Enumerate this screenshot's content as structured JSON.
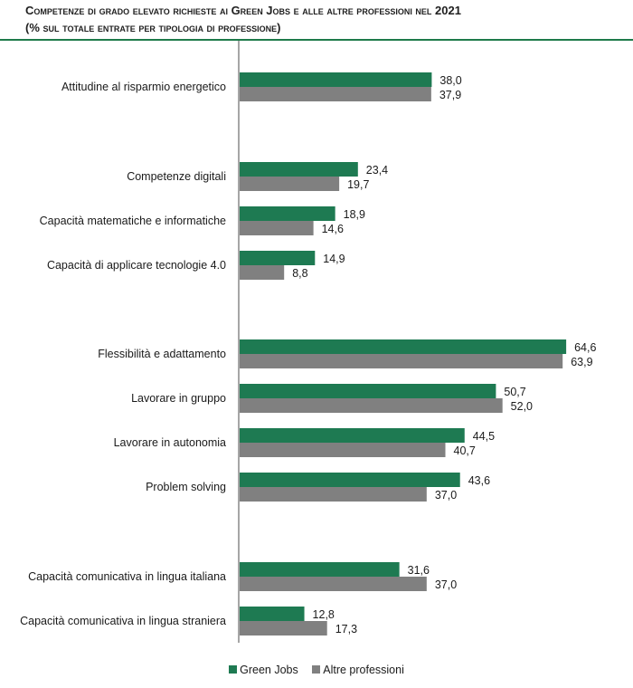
{
  "chart_data": {
    "type": "bar",
    "orientation": "horizontal",
    "title": "Competenze di grado elevato   richieste ai Green Jobs e alle altre professioni nel 2021",
    "subtitle": "(% sul totale entrate per tipologia di professione)",
    "xlabel": "",
    "ylabel": "",
    "xlim": [
      0,
      70
    ],
    "grid": false,
    "legend_position": "bottom",
    "categories": [
      "Attitudine al risparmio energetico",
      "Competenze digitali",
      "Capacità matematiche e informatiche",
      "Capacità di applicare tecnologie 4.0",
      "Flessibilità e adattamento",
      "Lavorare in gruppo",
      "Lavorare in autonomia",
      "Problem solving",
      "Capacità comunicativa in lingua italiana",
      "Capacità comunicativa in lingua straniera"
    ],
    "groups": [
      [
        0
      ],
      [
        1,
        2,
        3
      ],
      [
        4,
        5,
        6,
        7
      ],
      [
        8,
        9
      ]
    ],
    "series": [
      {
        "name": "Green Jobs",
        "color": "#1e7a52",
        "values": [
          38.0,
          23.4,
          18.9,
          14.9,
          64.6,
          50.7,
          44.5,
          43.6,
          31.6,
          12.8
        ],
        "labels": [
          "38,0",
          "23,4",
          "18,9",
          "14,9",
          "64,6",
          "50,7",
          "44,5",
          "43,6",
          "31,6",
          "12,8"
        ]
      },
      {
        "name": "Altre professioni",
        "color": "#808080",
        "values": [
          37.9,
          19.7,
          14.6,
          8.8,
          63.9,
          52.0,
          40.7,
          37.0,
          37.0,
          17.3
        ],
        "labels": [
          "37,9",
          "19,7",
          "14,6",
          "8,8",
          "63,9",
          "52,0",
          "40,7",
          "37,0",
          "37,0",
          "17,3"
        ]
      }
    ]
  },
  "header": {
    "title_line1": "Competenze di grado elevato   richieste ai Green Jobs e alle altre professioni nel 2021",
    "title_line2": "(% sul totale entrate per tipologia di professione)"
  },
  "legend": {
    "items": [
      {
        "label": "Green Jobs",
        "color": "#1e7a52"
      },
      {
        "label": "Altre professioni",
        "color": "#808080"
      }
    ]
  },
  "colors": {
    "rule": "#1e7a4a",
    "axis": "#a6a6a6"
  }
}
